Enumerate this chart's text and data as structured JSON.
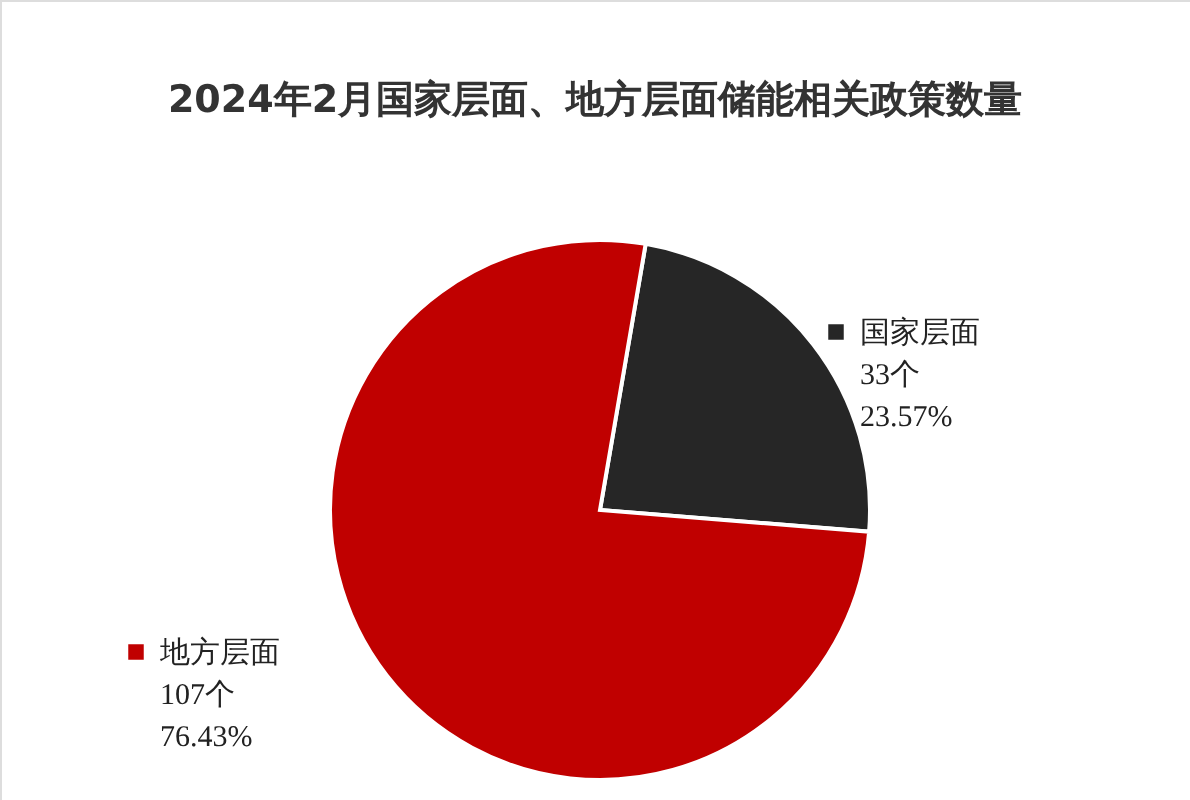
{
  "chart_data": {
    "type": "pie",
    "title": "2024年2月国家层面、地方层面储能相关政策数量",
    "categories": [
      "国家层面",
      "地方层面"
    ],
    "values": [
      33,
      107
    ],
    "colors": [
      "#262626",
      "#c00000"
    ],
    "value_labels": [
      "33个\n23.57%",
      "107个\n76.43%"
    ],
    "legend": "top left"
  }
}
